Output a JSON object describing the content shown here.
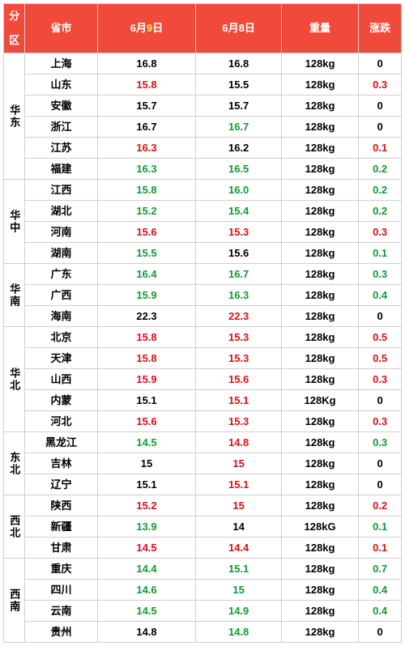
{
  "colors": {
    "header_bg": "#f24a3a",
    "header_text": "#ffffff",
    "border": "#cfcfcf",
    "text_black": "#000000",
    "text_red": "#e30f13",
    "text_green": "#129b33",
    "digit_alt": "#ffee58"
  },
  "headers": {
    "region": "分区",
    "province": "省市",
    "jun9_prefix": "6月",
    "jun9_digit": "9",
    "jun9_suffix": "日",
    "jun8": "6月8日",
    "weight": "重量",
    "change": "涨跌"
  },
  "regions": [
    {
      "name": "华东",
      "rows": [
        {
          "prov": "上海",
          "j9": "16.8",
          "j9c": "black",
          "j8": "16.8",
          "j8c": "black",
          "w": "128kg",
          "ch": "0",
          "chc": "black"
        },
        {
          "prov": "山东",
          "j9": "15.8",
          "j9c": "red",
          "j8": "15.5",
          "j8c": "black",
          "w": "128kg",
          "ch": "0.3",
          "chc": "red"
        },
        {
          "prov": "安徽",
          "j9": "15.7",
          "j9c": "black",
          "j8": "15.7",
          "j8c": "black",
          "w": "128kg",
          "ch": "0",
          "chc": "black"
        },
        {
          "prov": "浙江",
          "j9": "16.7",
          "j9c": "black",
          "j8": "16.7",
          "j8c": "green",
          "w": "128kg",
          "ch": "0",
          "chc": "black"
        },
        {
          "prov": "江苏",
          "j9": "16.3",
          "j9c": "red",
          "j8": "16.2",
          "j8c": "black",
          "w": "128kg",
          "ch": "0.1",
          "chc": "red"
        },
        {
          "prov": "福建",
          "j9": "16.3",
          "j9c": "green",
          "j8": "16.5",
          "j8c": "green",
          "w": "128kg",
          "ch": "0.2",
          "chc": "green"
        }
      ]
    },
    {
      "name": "华中",
      "rows": [
        {
          "prov": "江西",
          "j9": "15.8",
          "j9c": "green",
          "j8": "16.0",
          "j8c": "green",
          "w": "128kg",
          "ch": "0.2",
          "chc": "green"
        },
        {
          "prov": "湖北",
          "j9": "15.2",
          "j9c": "green",
          "j8": "15.4",
          "j8c": "green",
          "w": "128kg",
          "ch": "0.2",
          "chc": "green"
        },
        {
          "prov": "河南",
          "j9": "15.6",
          "j9c": "red",
          "j8": "15.3",
          "j8c": "red",
          "w": "128kg",
          "ch": "0.3",
          "chc": "red"
        },
        {
          "prov": "湖南",
          "j9": "15.5",
          "j9c": "green",
          "j8": "15.6",
          "j8c": "black",
          "w": "128kg",
          "ch": "0.1",
          "chc": "green"
        }
      ]
    },
    {
      "name": "华南",
      "rows": [
        {
          "prov": "广东",
          "j9": "16.4",
          "j9c": "green",
          "j8": "16.7",
          "j8c": "green",
          "w": "128kg",
          "ch": "0.3",
          "chc": "green"
        },
        {
          "prov": "广西",
          "j9": "15.9",
          "j9c": "green",
          "j8": "16.3",
          "j8c": "green",
          "w": "128kg",
          "ch": "0.4",
          "chc": "green"
        },
        {
          "prov": "海南",
          "j9": "22.3",
          "j9c": "black",
          "j8": "22.3",
          "j8c": "red",
          "w": "128kg",
          "ch": "0",
          "chc": "black"
        }
      ]
    },
    {
      "name": "华北",
      "rows": [
        {
          "prov": "北京",
          "j9": "15.8",
          "j9c": "red",
          "j8": "15.3",
          "j8c": "red",
          "w": "128kg",
          "ch": "0.5",
          "chc": "red"
        },
        {
          "prov": "天津",
          "j9": "15.8",
          "j9c": "red",
          "j8": "15.3",
          "j8c": "red",
          "w": "128kg",
          "ch": "0.5",
          "chc": "red"
        },
        {
          "prov": "山西",
          "j9": "15.9",
          "j9c": "red",
          "j8": "15.6",
          "j8c": "red",
          "w": "128kg",
          "ch": "0.3",
          "chc": "red"
        },
        {
          "prov": "内蒙",
          "j9": "15.1",
          "j9c": "black",
          "j8": "15.1",
          "j8c": "red",
          "w": "128Kg",
          "ch": "0",
          "chc": "black"
        },
        {
          "prov": "河北",
          "j9": "15.6",
          "j9c": "red",
          "j8": "15.3",
          "j8c": "red",
          "w": "128kg",
          "ch": "0.3",
          "chc": "red"
        }
      ]
    },
    {
      "name": "东北",
      "rows": [
        {
          "prov": "黑龙江",
          "j9": "14.5",
          "j9c": "green",
          "j8": "14.8",
          "j8c": "red",
          "w": "128kg",
          "ch": "0.3",
          "chc": "green"
        },
        {
          "prov": "吉林",
          "j9": "15",
          "j9c": "black",
          "j8": "15",
          "j8c": "red",
          "w": "128kg",
          "ch": "0",
          "chc": "black"
        },
        {
          "prov": "辽宁",
          "j9": "15.1",
          "j9c": "black",
          "j8": "15.1",
          "j8c": "red",
          "w": "128kg",
          "ch": "0",
          "chc": "black"
        }
      ]
    },
    {
      "name": "西北",
      "rows": [
        {
          "prov": "陕西",
          "j9": "15.2",
          "j9c": "red",
          "j8": "15",
          "j8c": "red",
          "w": "128kg",
          "ch": "0.2",
          "chc": "red"
        },
        {
          "prov": "新疆",
          "j9": "13.9",
          "j9c": "green",
          "j8": "14",
          "j8c": "black",
          "w": "128kG",
          "ch": "0.1",
          "chc": "green"
        },
        {
          "prov": "甘肃",
          "j9": "14.5",
          "j9c": "red",
          "j8": "14.4",
          "j8c": "red",
          "w": "128kg",
          "ch": "0.1",
          "chc": "red"
        }
      ]
    },
    {
      "name": "西南",
      "rows": [
        {
          "prov": "重庆",
          "j9": "14.4",
          "j9c": "green",
          "j8": "15.1",
          "j8c": "green",
          "w": "128kg",
          "ch": "0.7",
          "chc": "green"
        },
        {
          "prov": "四川",
          "j9": "14.6",
          "j9c": "green",
          "j8": "15",
          "j8c": "green",
          "w": "128kg",
          "ch": "0.4",
          "chc": "green"
        },
        {
          "prov": "云南",
          "j9": "14.5",
          "j9c": "green",
          "j8": "14.9",
          "j8c": "green",
          "w": "128kg",
          "ch": "0.4",
          "chc": "green"
        },
        {
          "prov": "贵州",
          "j9": "14.8",
          "j9c": "black",
          "j8": "14.8",
          "j8c": "green",
          "w": "128kg",
          "ch": "0",
          "chc": "black"
        }
      ]
    }
  ]
}
